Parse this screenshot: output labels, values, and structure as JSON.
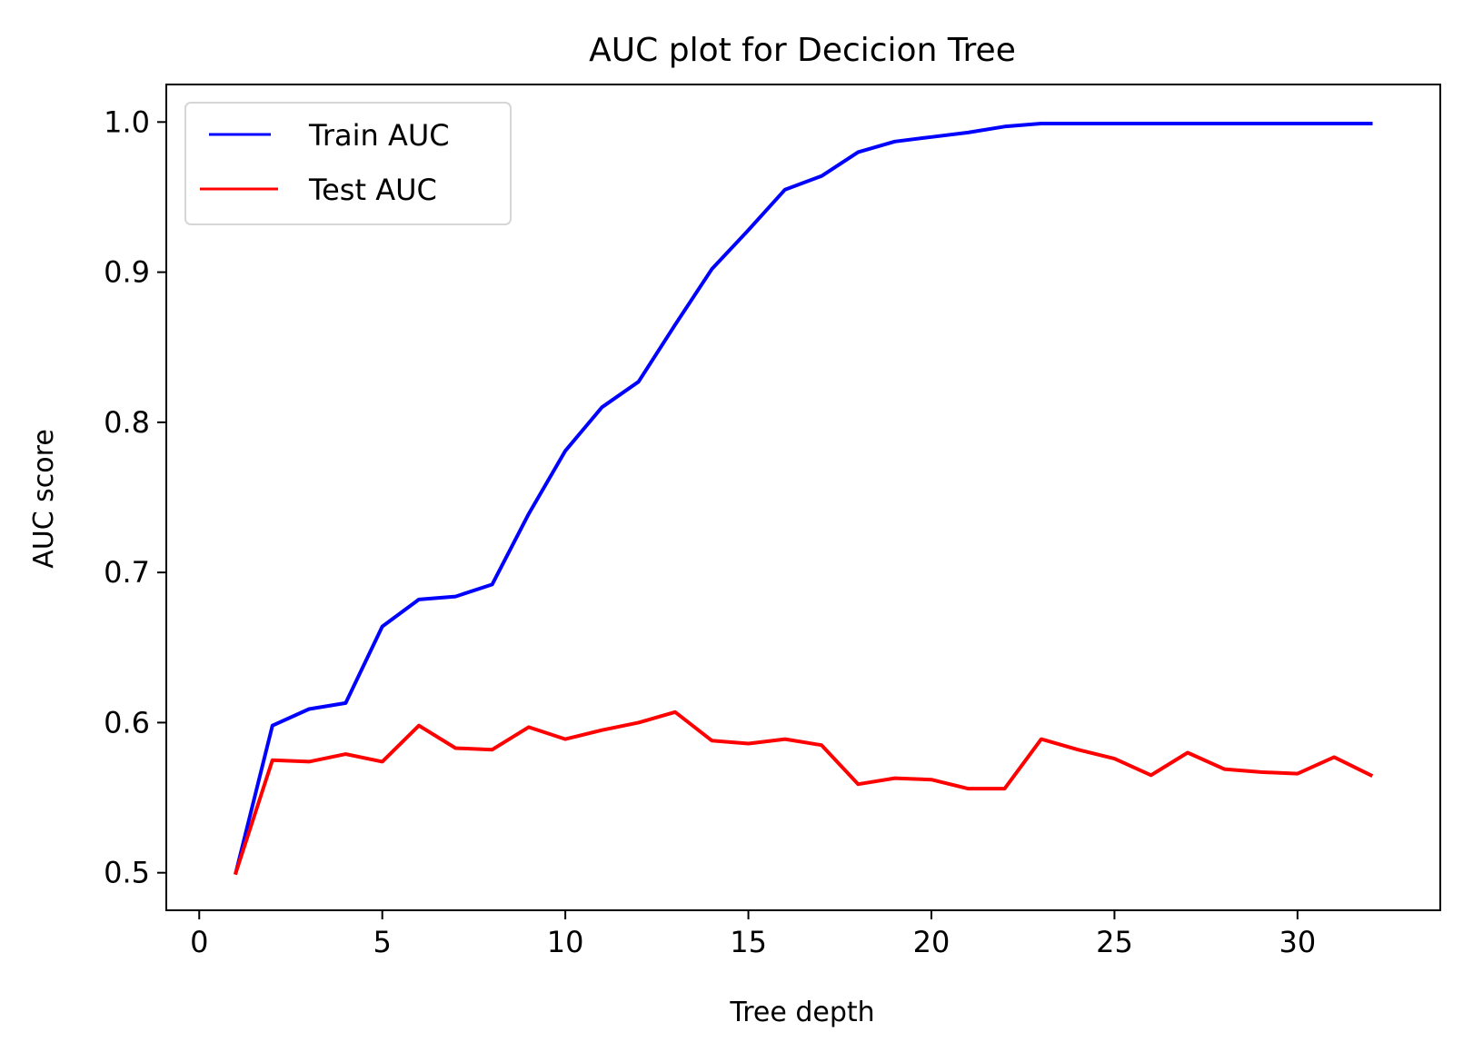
{
  "chart_data": {
    "type": "line",
    "title": "AUC plot for Decicion Tree",
    "xlabel": "Tree depth",
    "ylabel": "AUC score",
    "xlim": [
      -0.9,
      33.9
    ],
    "ylim": [
      0.475,
      1.025
    ],
    "xticks": [
      0,
      5,
      10,
      15,
      20,
      25,
      30
    ],
    "yticks": [
      0.5,
      0.6,
      0.7,
      0.8,
      0.9,
      1.0
    ],
    "ytick_labels": [
      "0.5",
      "0.6",
      "0.7",
      "0.8",
      "0.9",
      "1.0"
    ],
    "grid": false,
    "legend": "top-left",
    "x": [
      1,
      2,
      3,
      4,
      5,
      6,
      7,
      8,
      9,
      10,
      11,
      12,
      13,
      14,
      15,
      16,
      17,
      18,
      19,
      20,
      21,
      22,
      23,
      24,
      25,
      26,
      27,
      28,
      29,
      30,
      31,
      32
    ],
    "series": [
      {
        "name": "Train AUC",
        "color": "#0000ff",
        "values": [
          0.5,
          0.598,
          0.609,
          0.613,
          0.664,
          0.682,
          0.684,
          0.692,
          0.739,
          0.781,
          0.81,
          0.827,
          0.865,
          0.902,
          0.928,
          0.955,
          0.964,
          0.98,
          0.987,
          0.99,
          0.993,
          0.997,
          0.999,
          0.999,
          0.999,
          0.999,
          0.999,
          0.999,
          0.999,
          0.999,
          0.999,
          0.999
        ]
      },
      {
        "name": "Test AUC",
        "color": "#ff0000",
        "values": [
          0.5,
          0.575,
          0.574,
          0.579,
          0.574,
          0.598,
          0.583,
          0.582,
          0.597,
          0.589,
          0.595,
          0.6,
          0.607,
          0.588,
          0.586,
          0.589,
          0.585,
          0.559,
          0.563,
          0.562,
          0.556,
          0.556,
          0.589,
          0.582,
          0.576,
          0.565,
          0.58,
          0.569,
          0.567,
          0.566,
          0.577,
          0.565
        ]
      }
    ]
  }
}
